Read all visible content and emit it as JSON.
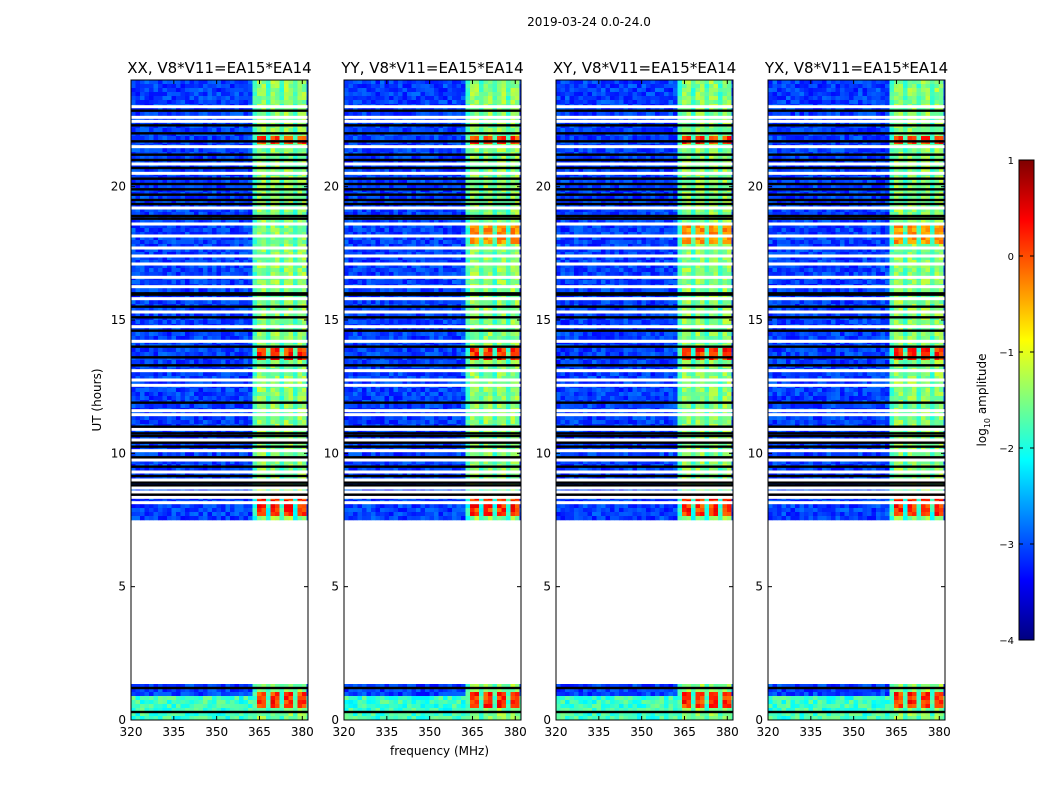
{
  "figure": {
    "suptitle": "2019-03-24 0.0-24.0",
    "colorscale_hint": "jet"
  },
  "chart_data": {
    "type": "heatmap",
    "x_label": "frequency (MHz)",
    "y_label": "UT (hours)",
    "xlim": [
      320,
      382
    ],
    "ylim": [
      0,
      24
    ],
    "x_ticks": [
      320,
      335,
      350,
      365,
      380
    ],
    "y_ticks": [
      0,
      5,
      10,
      15,
      20
    ],
    "flagged_ut_range": [
      1.4,
      7.6
    ],
    "rfi_band_mhz": [
      363,
      380
    ],
    "panels": [
      {
        "title": "XX, V8*V11=EA15*EA14",
        "polarization": "XX",
        "show_ylabel": true,
        "show_xlabel": false
      },
      {
        "title": "YY, V8*V11=EA15*EA14",
        "polarization": "YY",
        "show_ylabel": false,
        "show_xlabel": true
      },
      {
        "title": "XY, V8*V11=EA15*EA14",
        "polarization": "XY",
        "show_ylabel": false,
        "show_xlabel": false
      },
      {
        "title": "YX, V8*V11=EA15*EA14",
        "polarization": "YX",
        "show_ylabel": false,
        "show_xlabel": false
      }
    ],
    "colorbar": {
      "label": "log10 amplitude",
      "label_main": "log",
      "label_sub": "10",
      "label_suffix": " amplitude",
      "min": -4,
      "max": 1,
      "ticks": [
        {
          "value": 1,
          "label": "1"
        },
        {
          "value": 0,
          "label": "0"
        },
        {
          "value": -1,
          "label": "−1"
        },
        {
          "value": -2,
          "label": "−2"
        },
        {
          "value": -3,
          "label": "−3"
        },
        {
          "value": -4,
          "label": "−4"
        }
      ],
      "colors": [
        "#00007f",
        "#0000ff",
        "#007fff",
        "#00ffff",
        "#7fff7f",
        "#ffff00",
        "#ff7f00",
        "#ff0000",
        "#7f0000"
      ]
    }
  }
}
